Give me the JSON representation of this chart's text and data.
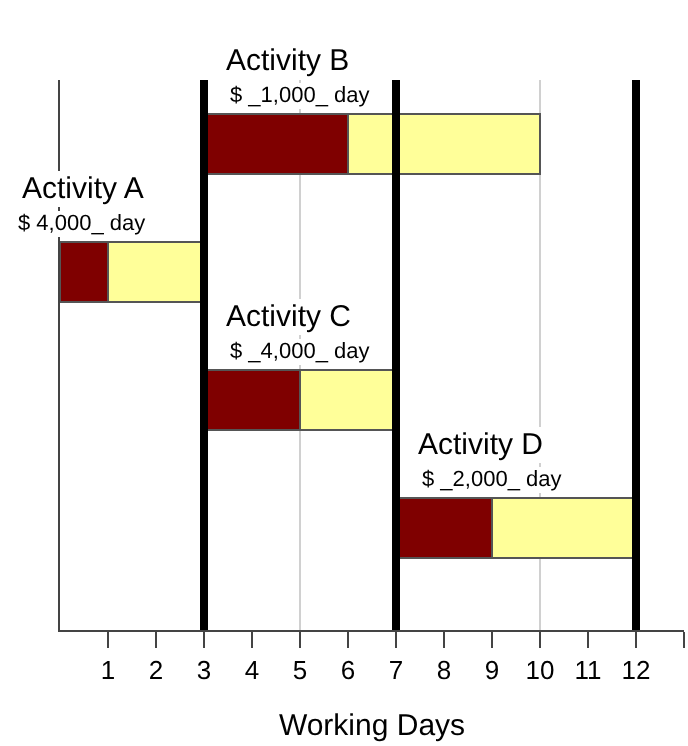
{
  "chart_data": {
    "type": "bar",
    "orientation": "horizontal",
    "xlabel": "Working Days",
    "categories": [
      "Activity B",
      "Activity A",
      "Activity C",
      "Activity D"
    ],
    "series": [
      {
        "color": "#7f0000",
        "base": [
          3,
          0,
          3,
          7
        ],
        "values": [
          3,
          1,
          2,
          2
        ]
      },
      {
        "color": "#ffff99",
        "base": [
          6,
          1,
          5,
          9
        ],
        "values": [
          4,
          2,
          2,
          3
        ]
      }
    ],
    "annotations": [
      "$ _1,000_ day",
      "$ 4,000_ day",
      "$ _4,000_ day",
      "$ _2,000_ day"
    ],
    "ref_lines": [
      {
        "axis": "x",
        "value": 5,
        "color": "#d0d0d0"
      },
      {
        "axis": "x",
        "value": 10,
        "color": "#d0d0d0"
      },
      {
        "axis": "x",
        "value": 3,
        "color": "#000000"
      },
      {
        "axis": "x",
        "value": 7,
        "color": "#000000"
      },
      {
        "axis": "x",
        "value": 12,
        "color": "#000000"
      }
    ],
    "xlim": [
      0,
      13
    ],
    "xticks": [
      1,
      2,
      3,
      4,
      5,
      6,
      7,
      8,
      9,
      10,
      11,
      12,
      {
        "value": 13,
        "label": null
      }
    ],
    "tick_labels": "x",
    "grid": false
  }
}
